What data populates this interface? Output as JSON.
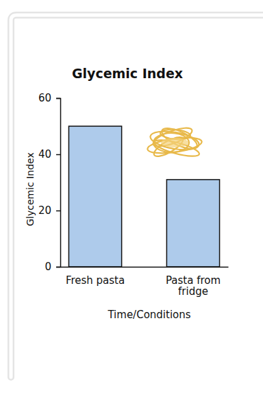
{
  "chart_data": {
    "type": "bar",
    "title": "Glycemic Index",
    "x_label": "Time/Conditions",
    "y_label": "Glycemic Index",
    "categories": [
      "Fresh pasta",
      "Pasta from fridge"
    ],
    "values": [
      50,
      31
    ],
    "color": "#aecbeb",
    "ylim": [
      0,
      60
    ],
    "yticks": [
      0,
      20,
      40,
      60
    ],
    "grid": false
  }
}
